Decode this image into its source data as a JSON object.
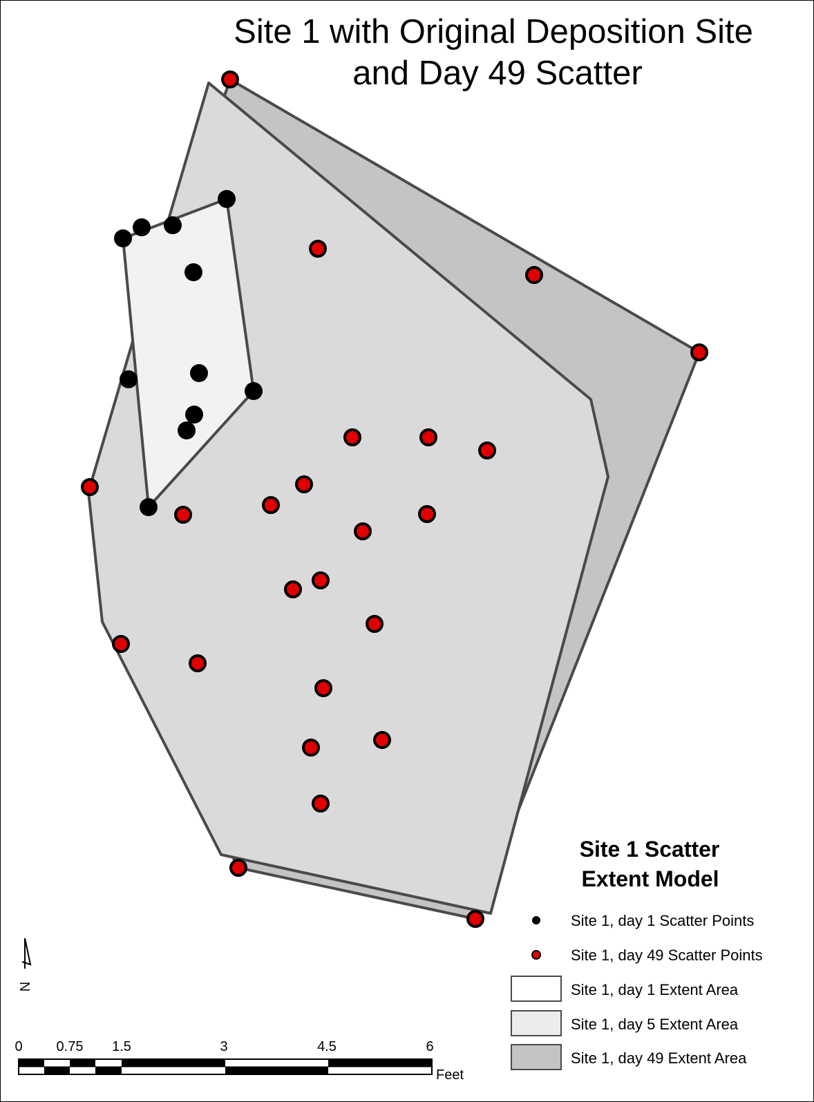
{
  "title": {
    "line1": "Site 1 with Original Deposition Site",
    "line2": "and Day 49 Scatter"
  },
  "legend": {
    "title_line1": "Site 1  Scatter",
    "title_line2": "Extent Model",
    "items": [
      {
        "label": "Site 1, day 1 Scatter Points",
        "symbol": "black-point",
        "color": "#000000"
      },
      {
        "label": "Site 1,  day 49 Scatter Points",
        "symbol": "red-point",
        "color": "#e00000"
      },
      {
        "label": "Site 1, day 1 Extent Area",
        "symbol": "box",
        "color": "#ffffff"
      },
      {
        "label": "Site 1, day 5 Extent Area",
        "symbol": "box",
        "color": "#ececec"
      },
      {
        "label": "Site 1, day 49 Extent Area",
        "symbol": "box",
        "color": "#c4c4c4"
      }
    ]
  },
  "scale_bar": {
    "ticks": [
      "0",
      "0.75",
      "1.5",
      "3",
      "4.5",
      "6"
    ],
    "unit": "Feet"
  },
  "north_arrow": {
    "label": "N"
  },
  "colors": {
    "day49_fill": "#c4c4c4",
    "day5_fill": "#dcdcdc",
    "day1_fill": "#f2f2f2",
    "outline": "#4a4a4a",
    "red_point": "#e00000",
    "black_point": "#000000"
  }
}
